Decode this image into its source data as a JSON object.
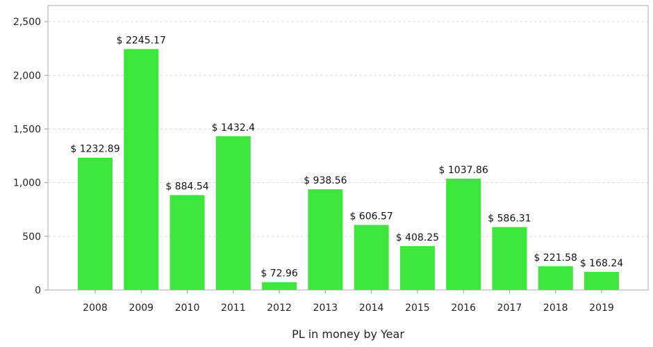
{
  "chart_data": {
    "type": "bar",
    "categories": [
      "2008",
      "2009",
      "2010",
      "2011",
      "2012",
      "2013",
      "2014",
      "2015",
      "2016",
      "2017",
      "2018",
      "2019"
    ],
    "values": [
      1232.89,
      2245.17,
      884.54,
      1432.4,
      72.96,
      938.56,
      606.57,
      408.25,
      1037.86,
      586.31,
      221.58,
      168.24
    ],
    "data_labels": [
      "$ 1232.89",
      "$ 2245.17",
      "$ 884.54",
      "$ 1432.4",
      "$ 72.96",
      "$ 938.56",
      "$ 606.57",
      "$ 408.25",
      "$ 1037.86",
      "$ 586.31",
      "$ 221.58",
      "$ 168.24"
    ],
    "title": "",
    "xlabel": "PL in money by Year",
    "ylabel": "",
    "ylim": [
      0,
      2650
    ],
    "yticks": [
      0,
      500,
      1000,
      1500,
      2000,
      2500
    ],
    "ytick_labels": [
      "0",
      "500",
      "1,000",
      "1,500",
      "2,000",
      "2,500"
    ],
    "grid": true,
    "legend": "none",
    "bar_color": "#3de63d"
  }
}
